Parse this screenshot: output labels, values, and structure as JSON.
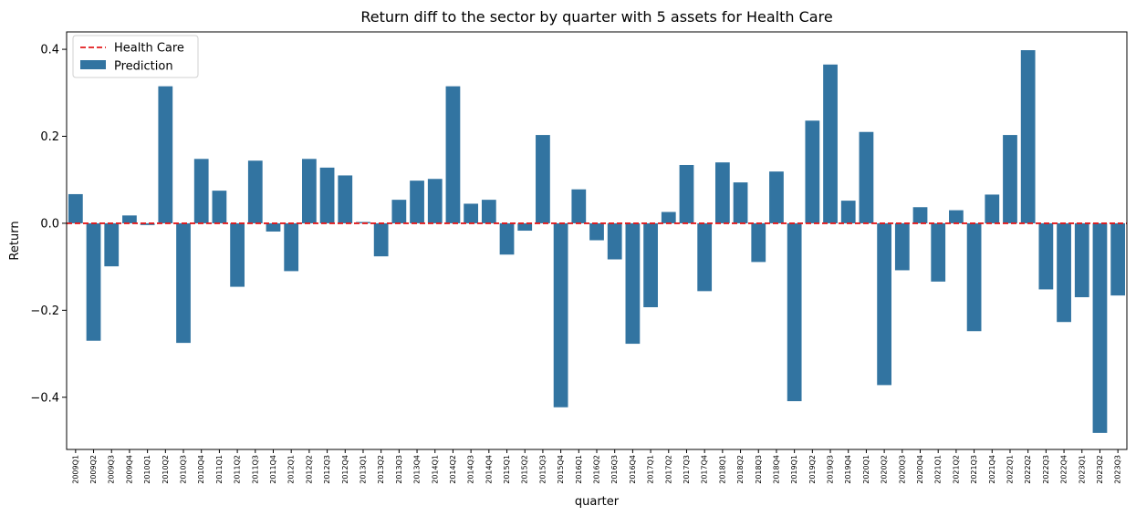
{
  "chart_data": {
    "type": "bar",
    "title": "Return diff to the sector by quarter with 5 assets for Health Care",
    "xlabel": "quarter",
    "ylabel": "Return",
    "ylim": [
      -0.52,
      0.44
    ],
    "yticks": [
      -0.4,
      -0.2,
      0.0,
      0.2,
      0.4
    ],
    "ytick_labels": [
      "−0.4",
      "−0.2",
      "0.0",
      "0.2",
      "0.4"
    ],
    "grid": false,
    "legend_position": "top-left",
    "categories": [
      "2009Q1",
      "2009Q2",
      "2009Q3",
      "2009Q4",
      "2010Q1",
      "2010Q2",
      "2010Q3",
      "2010Q4",
      "2011Q1",
      "2011Q2",
      "2011Q3",
      "2011Q4",
      "2012Q1",
      "2012Q2",
      "2012Q3",
      "2012Q4",
      "2013Q1",
      "2013Q2",
      "2013Q3",
      "2013Q4",
      "2014Q1",
      "2014Q2",
      "2014Q3",
      "2014Q4",
      "2015Q1",
      "2015Q2",
      "2015Q3",
      "2015Q4",
      "2016Q1",
      "2016Q2",
      "2016Q3",
      "2016Q4",
      "2017Q1",
      "2017Q2",
      "2017Q3",
      "2017Q4",
      "2018Q1",
      "2018Q2",
      "2018Q3",
      "2018Q4",
      "2019Q1",
      "2019Q2",
      "2019Q3",
      "2019Q4",
      "2020Q1",
      "2020Q2",
      "2020Q3",
      "2020Q4",
      "2021Q1",
      "2021Q2",
      "2021Q3",
      "2021Q4",
      "2022Q1",
      "2022Q2",
      "2022Q3",
      "2022Q4",
      "2023Q1",
      "2023Q2",
      "2023Q3"
    ],
    "series": [
      {
        "name": "Prediction",
        "kind": "bar",
        "color": "#3274a1",
        "values": [
          0.067,
          -0.27,
          -0.099,
          0.018,
          -0.004,
          0.315,
          -0.275,
          0.148,
          0.075,
          -0.146,
          0.144,
          -0.019,
          -0.11,
          0.148,
          0.128,
          0.11,
          0.003,
          -0.076,
          0.054,
          0.098,
          0.102,
          0.315,
          0.045,
          0.054,
          -0.072,
          -0.017,
          0.203,
          -0.423,
          0.078,
          -0.039,
          -0.083,
          -0.277,
          -0.193,
          0.026,
          0.134,
          -0.156,
          0.14,
          0.094,
          -0.089,
          0.119,
          -0.409,
          0.236,
          0.365,
          0.052,
          0.21,
          -0.372,
          -0.108,
          0.037,
          -0.134,
          0.03,
          -0.248,
          0.066,
          0.203,
          0.398,
          -0.152,
          -0.227,
          -0.17,
          -0.482,
          -0.166
        ]
      },
      {
        "name": "Health Care",
        "kind": "line",
        "style": "dashed",
        "color": "#e31a1c",
        "value": 0.0
      }
    ]
  }
}
